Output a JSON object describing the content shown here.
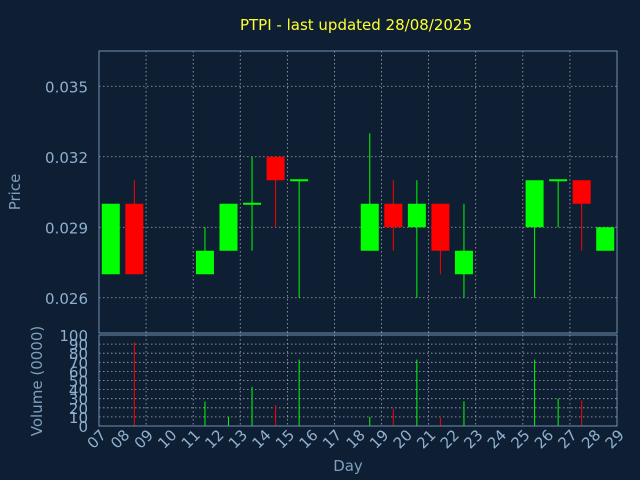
{
  "title": "PTPI - last updated 28/08/2025",
  "colors": {
    "background": "#0f1f33",
    "up": "#00ff00",
    "down": "#ff0000",
    "title": "#ffff33",
    "axis_text": "#8fb0cf"
  },
  "chart_data": [
    {
      "type": "candlestick",
      "ylabel": "Price",
      "ylim": [
        0.0245,
        0.0365
      ],
      "yticks": [
        "0.026",
        "0.029",
        "0.032",
        "0.035"
      ],
      "ytick_values": [
        0.026,
        0.029,
        0.032,
        0.035
      ],
      "grid": true,
      "x": [
        "07",
        "08",
        "11",
        "12",
        "13",
        "14",
        "15",
        "18",
        "19",
        "20",
        "21",
        "22",
        "25",
        "26",
        "27",
        "28"
      ],
      "open": [
        0.027,
        0.03,
        0.027,
        0.028,
        0.03,
        0.032,
        0.031,
        0.028,
        0.03,
        0.029,
        0.03,
        0.027,
        0.029,
        0.031,
        0.031,
        0.028
      ],
      "high": [
        0.03,
        0.031,
        0.029,
        0.03,
        0.032,
        0.032,
        0.031,
        0.033,
        0.031,
        0.031,
        0.03,
        0.03,
        0.031,
        0.031,
        0.031,
        0.029
      ],
      "low": [
        0.027,
        0.027,
        0.027,
        0.028,
        0.028,
        0.029,
        0.026,
        0.028,
        0.028,
        0.026,
        0.027,
        0.026,
        0.026,
        0.029,
        0.028,
        0.028
      ],
      "close": [
        0.03,
        0.027,
        0.028,
        0.03,
        0.03,
        0.031,
        0.031,
        0.03,
        0.029,
        0.03,
        0.028,
        0.028,
        0.031,
        0.031,
        0.03,
        0.029
      ]
    },
    {
      "type": "bar",
      "ylabel": "Volume (0000)",
      "xlabel": "Day",
      "ylim": [
        0,
        100
      ],
      "yticks": [
        "0",
        "10",
        "20",
        "30",
        "40",
        "50",
        "60",
        "70",
        "80",
        "90",
        "100"
      ],
      "ytick_values": [
        0,
        10,
        20,
        30,
        40,
        50,
        60,
        70,
        80,
        90,
        100
      ],
      "grid": true,
      "x": [
        "07",
        "08",
        "11",
        "12",
        "13",
        "14",
        "15",
        "18",
        "19",
        "20",
        "21",
        "22",
        "25",
        "26",
        "27",
        "28"
      ],
      "values": [
        0,
        92,
        27,
        10,
        43,
        23,
        73,
        10,
        19,
        73,
        9,
        27,
        73,
        30,
        28,
        0
      ],
      "direction": [
        "up",
        "down",
        "up",
        "up",
        "up",
        "down",
        "up",
        "up",
        "down",
        "up",
        "down",
        "up",
        "up",
        "up",
        "down",
        "up"
      ]
    }
  ],
  "x_axis": {
    "labels": [
      "07",
      "08",
      "09",
      "10",
      "11",
      "12",
      "13",
      "14",
      "15",
      "16",
      "17",
      "18",
      "19",
      "20",
      "21",
      "22",
      "23",
      "24",
      "25",
      "26",
      "27",
      "28",
      "29"
    ]
  }
}
